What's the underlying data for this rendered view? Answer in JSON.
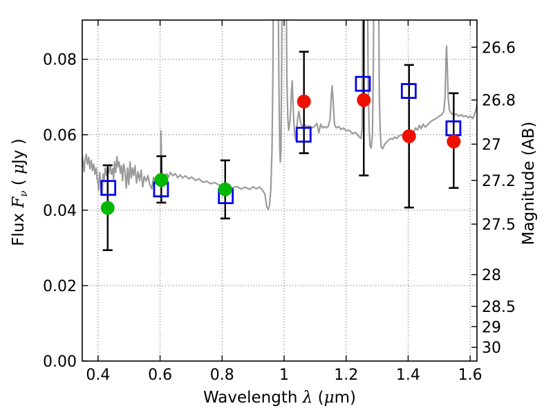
{
  "figure": {
    "background": "#ffffff",
    "frame_color": "#000000",
    "grid_color": "#555555",
    "errorbar_color": "#000000"
  },
  "labels": {
    "xlabel": "Wavelength λ (μm)",
    "ylabel_left": "Flux Fν ( μJy )",
    "ylabel_right": "Magnitude (AB)",
    "xlabel_parts": [
      {
        "t": "Wavelength  "
      },
      {
        "t": "λ",
        "i": 1
      },
      {
        "t": " ("
      },
      {
        "t": "μ",
        "i": 1
      },
      {
        "t": "m)"
      }
    ],
    "ylabel_left_parts": [
      {
        "t": "Flux  "
      },
      {
        "t": "F",
        "i": 1
      },
      {
        "t": "ν",
        "i": 1,
        "sub": 1
      },
      {
        "t": "  ( "
      },
      {
        "t": "μ",
        "i": 1
      },
      {
        "t": "Jy )"
      }
    ]
  },
  "chart_data": {
    "type": "line+scatter",
    "title": "",
    "xlabel": "Wavelength λ (μm)",
    "ylabel_left": "Flux Fν ( μJy )",
    "ylabel_right": "Magnitude (AB)",
    "xlim": [
      0.349,
      1.622
    ],
    "ylim": [
      0.0,
      0.0904
    ],
    "grid": {
      "style": "dotted",
      "on": true
    },
    "x_ticks": {
      "values": [
        0.4,
        0.6,
        0.8,
        1.0,
        1.2,
        1.4,
        1.6
      ],
      "labels": [
        "0.4",
        "0.6",
        "0.8",
        "1",
        "1.2",
        "1.4",
        "1.6"
      ]
    },
    "y_ticks_left": {
      "values": [
        0.0,
        0.02,
        0.04,
        0.06,
        0.08
      ],
      "labels": [
        "0.00",
        "0.02",
        "0.04",
        "0.06",
        "0.08"
      ]
    },
    "y_ticks_right": {
      "labels": [
        "26.6",
        "26.8",
        "27",
        "27.2",
        "27.5",
        "28",
        "28.5",
        "29",
        "30"
      ],
      "flux_positions": [
        0.0832,
        0.0692,
        0.0575,
        0.0479,
        0.0363,
        0.0229,
        0.0145,
        0.00912,
        0.00363
      ]
    },
    "spectrum": {
      "name": "gray-model-spectrum",
      "color": "#9b9b9b",
      "line_width": 2.2,
      "points": [
        [
          0.349,
          0.0545
        ],
        [
          0.352,
          0.0528
        ],
        [
          0.355,
          0.0502
        ],
        [
          0.358,
          0.053
        ],
        [
          0.362,
          0.0548
        ],
        [
          0.366,
          0.0522
        ],
        [
          0.37,
          0.054
        ],
        [
          0.374,
          0.051
        ],
        [
          0.378,
          0.0532
        ],
        [
          0.382,
          0.0505
        ],
        [
          0.386,
          0.0522
        ],
        [
          0.39,
          0.0495
        ],
        [
          0.394,
          0.0512
        ],
        [
          0.397,
          0.0482
        ],
        [
          0.4,
          0.047
        ],
        [
          0.402,
          0.0452
        ],
        [
          0.405,
          0.05
        ],
        [
          0.408,
          0.0478
        ],
        [
          0.41,
          0.0449
        ],
        [
          0.413,
          0.044
        ],
        [
          0.416,
          0.0495
        ],
        [
          0.419,
          0.0478
        ],
        [
          0.423,
          0.0512
        ],
        [
          0.427,
          0.0492
        ],
        [
          0.431,
          0.0515
        ],
        [
          0.435,
          0.0498
        ],
        [
          0.439,
          0.052
        ],
        [
          0.443,
          0.0495
        ],
        [
          0.447,
          0.051
        ],
        [
          0.45,
          0.0482
        ],
        [
          0.453,
          0.0528
        ],
        [
          0.457,
          0.05
        ],
        [
          0.461,
          0.0542
        ],
        [
          0.464,
          0.0515
        ],
        [
          0.468,
          0.0528
        ],
        [
          0.472,
          0.0498
        ],
        [
          0.476,
          0.0518
        ],
        [
          0.479,
          0.0478
        ],
        [
          0.483,
          0.0522
        ],
        [
          0.487,
          0.0502
        ],
        [
          0.491,
          0.0458
        ],
        [
          0.495,
          0.0512
        ],
        [
          0.499,
          0.0468
        ],
        [
          0.503,
          0.0528
        ],
        [
          0.507,
          0.0485
        ],
        [
          0.511,
          0.0512
        ],
        [
          0.515,
          0.0492
        ],
        [
          0.519,
          0.0518
        ],
        [
          0.524,
          0.0472
        ],
        [
          0.529,
          0.0502
        ],
        [
          0.534,
          0.0478
        ],
        [
          0.539,
          0.0506
        ],
        [
          0.544,
          0.0462
        ],
        [
          0.549,
          0.049
        ],
        [
          0.555,
          0.0477
        ],
        [
          0.561,
          0.0492
        ],
        [
          0.567,
          0.0467
        ],
        [
          0.573,
          0.0457
        ],
        [
          0.579,
          0.0487
        ],
        [
          0.585,
          0.0472
        ],
        [
          0.591,
          0.0482
        ],
        [
          0.597,
          0.0472
        ],
        [
          0.601,
          0.0482
        ],
        [
          0.603,
          0.061
        ],
        [
          0.606,
          0.0478
        ],
        [
          0.61,
          0.0492
        ],
        [
          0.615,
          0.0483
        ],
        [
          0.621,
          0.0497
        ],
        [
          0.627,
          0.0487
        ],
        [
          0.633,
          0.05
        ],
        [
          0.641,
          0.0491
        ],
        [
          0.649,
          0.0497
        ],
        [
          0.657,
          0.0486
        ],
        [
          0.665,
          0.0493
        ],
        [
          0.673,
          0.0486
        ],
        [
          0.682,
          0.0491
        ],
        [
          0.692,
          0.0483
        ],
        [
          0.702,
          0.0488
        ],
        [
          0.714,
          0.0479
        ],
        [
          0.726,
          0.0483
        ],
        [
          0.738,
          0.0474
        ],
        [
          0.75,
          0.0477
        ],
        [
          0.763,
          0.047
        ],
        [
          0.777,
          0.0473
        ],
        [
          0.791,
          0.0466
        ],
        [
          0.805,
          0.0468
        ],
        [
          0.819,
          0.0461
        ],
        [
          0.833,
          0.0459
        ],
        [
          0.847,
          0.0463
        ],
        [
          0.861,
          0.0456
        ],
        [
          0.875,
          0.0461
        ],
        [
          0.889,
          0.0455
        ],
        [
          0.9,
          0.0462
        ],
        [
          0.911,
          0.0457
        ],
        [
          0.921,
          0.0461
        ],
        [
          0.93,
          0.0453
        ],
        [
          0.938,
          0.0443
        ],
        [
          0.944,
          0.0409
        ],
        [
          0.949,
          0.0402
        ],
        [
          0.953,
          0.0413
        ],
        [
          0.957,
          0.0452
        ],
        [
          0.961,
          0.056
        ],
        [
          0.964,
          0.078
        ],
        [
          0.966,
          0.11
        ],
        [
          0.98,
          0.11
        ],
        [
          0.983,
          0.075
        ],
        [
          0.986,
          0.056
        ],
        [
          0.988,
          0.0528
        ],
        [
          0.99,
          0.056
        ],
        [
          0.992,
          0.075
        ],
        [
          0.994,
          0.11
        ],
        [
          1.006,
          0.11
        ],
        [
          1.009,
          0.075
        ],
        [
          1.012,
          0.064
        ],
        [
          1.015,
          0.0612
        ],
        [
          1.018,
          0.063
        ],
        [
          1.021,
          0.066
        ],
        [
          1.024,
          0.072
        ],
        [
          1.026,
          0.0743
        ],
        [
          1.028,
          0.07
        ],
        [
          1.031,
          0.064
        ],
        [
          1.034,
          0.06
        ],
        [
          1.037,
          0.0587
        ],
        [
          1.04,
          0.061
        ],
        [
          1.044,
          0.0645
        ],
        [
          1.048,
          0.0662
        ],
        [
          1.052,
          0.0638
        ],
        [
          1.056,
          0.0625
        ],
        [
          1.061,
          0.0622
        ],
        [
          1.068,
          0.0626
        ],
        [
          1.075,
          0.062
        ],
        [
          1.082,
          0.0624
        ],
        [
          1.09,
          0.0618
        ],
        [
          1.098,
          0.0622
        ],
        [
          1.106,
          0.063
        ],
        [
          1.112,
          0.0605
        ],
        [
          1.118,
          0.0628
        ],
        [
          1.124,
          0.0618
        ],
        [
          1.13,
          0.0622
        ],
        [
          1.136,
          0.0618
        ],
        [
          1.142,
          0.0622
        ],
        [
          1.148,
          0.064
        ],
        [
          1.152,
          0.07
        ],
        [
          1.155,
          0.073
        ],
        [
          1.158,
          0.069
        ],
        [
          1.162,
          0.063
        ],
        [
          1.168,
          0.0618
        ],
        [
          1.176,
          0.0622
        ],
        [
          1.184,
          0.0614
        ],
        [
          1.192,
          0.0618
        ],
        [
          1.2,
          0.061
        ],
        [
          1.21,
          0.0612
        ],
        [
          1.22,
          0.0603
        ],
        [
          1.23,
          0.0606
        ],
        [
          1.24,
          0.0596
        ],
        [
          1.248,
          0.059
        ],
        [
          1.252,
          0.062
        ],
        [
          1.254,
          0.11
        ],
        [
          1.268,
          0.11
        ],
        [
          1.271,
          0.075
        ],
        [
          1.274,
          0.062
        ],
        [
          1.277,
          0.057
        ],
        [
          1.281,
          0.0565
        ],
        [
          1.285,
          0.06
        ],
        [
          1.288,
          0.08
        ],
        [
          1.29,
          0.11
        ],
        [
          1.304,
          0.11
        ],
        [
          1.307,
          0.07
        ],
        [
          1.31,
          0.061
        ],
        [
          1.313,
          0.0568
        ],
        [
          1.318,
          0.0563
        ],
        [
          1.324,
          0.0574
        ],
        [
          1.33,
          0.058
        ],
        [
          1.336,
          0.0585
        ],
        [
          1.343,
          0.059
        ],
        [
          1.35,
          0.0588
        ],
        [
          1.357,
          0.0594
        ],
        [
          1.364,
          0.059
        ],
        [
          1.371,
          0.0597
        ],
        [
          1.378,
          0.06
        ],
        [
          1.385,
          0.0594
        ],
        [
          1.392,
          0.0602
        ],
        [
          1.399,
          0.0598
        ],
        [
          1.406,
          0.0605
        ],
        [
          1.412,
          0.06
        ],
        [
          1.418,
          0.0608
        ],
        [
          1.424,
          0.0618
        ],
        [
          1.43,
          0.0612
        ],
        [
          1.436,
          0.0625
        ],
        [
          1.442,
          0.0616
        ],
        [
          1.448,
          0.0628
        ],
        [
          1.455,
          0.062
        ],
        [
          1.462,
          0.0626
        ],
        [
          1.47,
          0.0632
        ],
        [
          1.478,
          0.0638
        ],
        [
          1.488,
          0.0642
        ],
        [
          1.498,
          0.0648
        ],
        [
          1.508,
          0.0653
        ],
        [
          1.515,
          0.0662
        ],
        [
          1.519,
          0.07
        ],
        [
          1.522,
          0.079
        ],
        [
          1.524,
          0.0835
        ],
        [
          1.526,
          0.079
        ],
        [
          1.529,
          0.07
        ],
        [
          1.533,
          0.0665
        ],
        [
          1.539,
          0.0657
        ],
        [
          1.547,
          0.0652
        ],
        [
          1.555,
          0.0655
        ],
        [
          1.563,
          0.0649
        ],
        [
          1.571,
          0.0653
        ],
        [
          1.579,
          0.0648
        ],
        [
          1.587,
          0.0651
        ],
        [
          1.594,
          0.0645
        ],
        [
          1.601,
          0.0649
        ],
        [
          1.608,
          0.0643
        ],
        [
          1.614,
          0.0653
        ],
        [
          1.619,
          0.0667
        ],
        [
          1.622,
          0.0684
        ]
      ]
    },
    "scatter_series": [
      {
        "name": "green-filled-circles",
        "marker": "circle",
        "color": "#00b800",
        "marker_radius": 10,
        "points": [
          {
            "x": 0.431,
            "y": 0.0406,
            "y_lo": 0.0294,
            "y_hi": 0.0519
          },
          {
            "x": 0.604,
            "y": 0.048,
            "y_lo": 0.042,
            "y_hi": 0.0543
          },
          {
            "x": 0.81,
            "y": 0.0455,
            "y_lo": 0.0378,
            "y_hi": 0.0532
          }
        ]
      },
      {
        "name": "blue-open-squares",
        "marker": "square-open",
        "color": "#0000ee",
        "marker_size": 20,
        "points": [
          {
            "x": 0.433,
            "y": 0.0459
          },
          {
            "x": 0.603,
            "y": 0.0455
          },
          {
            "x": 0.812,
            "y": 0.0437
          },
          {
            "x": 1.063,
            "y": 0.06
          },
          {
            "x": 1.254,
            "y": 0.0735
          },
          {
            "x": 1.402,
            "y": 0.0716
          },
          {
            "x": 1.546,
            "y": 0.0617
          }
        ]
      },
      {
        "name": "red-filled-circles",
        "marker": "circle",
        "color": "#ee1100",
        "marker_radius": 10,
        "points": [
          {
            "x": 1.064,
            "y": 0.0688,
            "y_lo": 0.0551,
            "y_hi": 0.082
          },
          {
            "x": 1.257,
            "y": 0.0692,
            "y_lo": 0.0492,
            "y_hi": 0.095,
            "hi_clipped": true
          },
          {
            "x": 1.403,
            "y": 0.0596,
            "y_lo": 0.0407,
            "y_hi": 0.0785
          },
          {
            "x": 1.547,
            "y": 0.0582,
            "y_lo": 0.0459,
            "y_hi": 0.071
          }
        ]
      }
    ]
  }
}
